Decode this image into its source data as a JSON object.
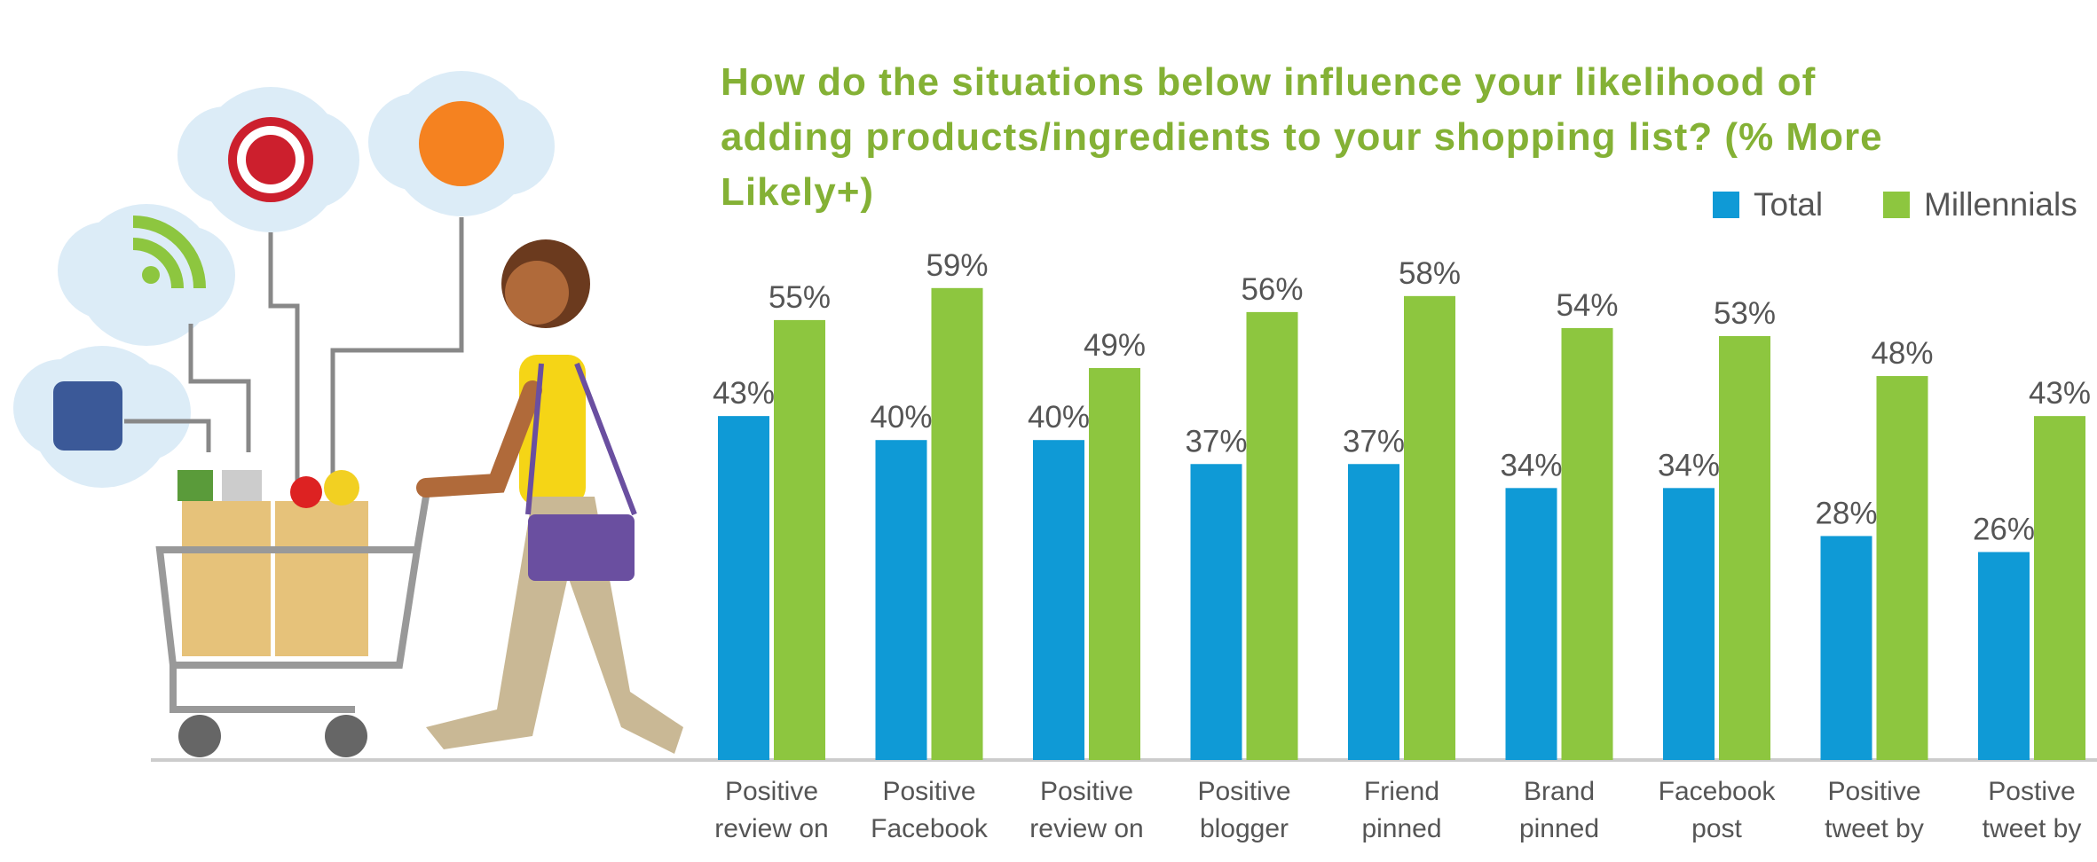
{
  "chart_data": {
    "type": "bar",
    "title": "How do the situations below influence your likelihood of adding products/ingredients to your shopping list? (% More Likely+)",
    "categories": [
      "Positive review on",
      "Positive Facebook",
      "Positive review on",
      "Positive blogger",
      "Friend pinned",
      "Brand pinned",
      "Facebook post",
      "Positive tweet by",
      "Postive tweet by"
    ],
    "series": [
      {
        "name": "Total",
        "color": "#0f9ad6",
        "values": [
          43,
          40,
          40,
          37,
          37,
          34,
          34,
          28,
          26
        ],
        "value_labels": [
          "43%",
          "40%",
          "40%",
          "37%",
          "37%",
          "34%",
          "34%",
          "28%",
          "26%"
        ]
      },
      {
        "name": "Millennials",
        "color": "#8dc63f",
        "values": [
          55,
          59,
          49,
          56,
          58,
          54,
          53,
          48,
          43
        ],
        "value_labels": [
          "55%",
          "59%",
          "49%",
          "56%",
          "58%",
          "54%",
          "53%",
          "48%",
          "43%"
        ]
      }
    ],
    "legend": "top-right"
  }
}
